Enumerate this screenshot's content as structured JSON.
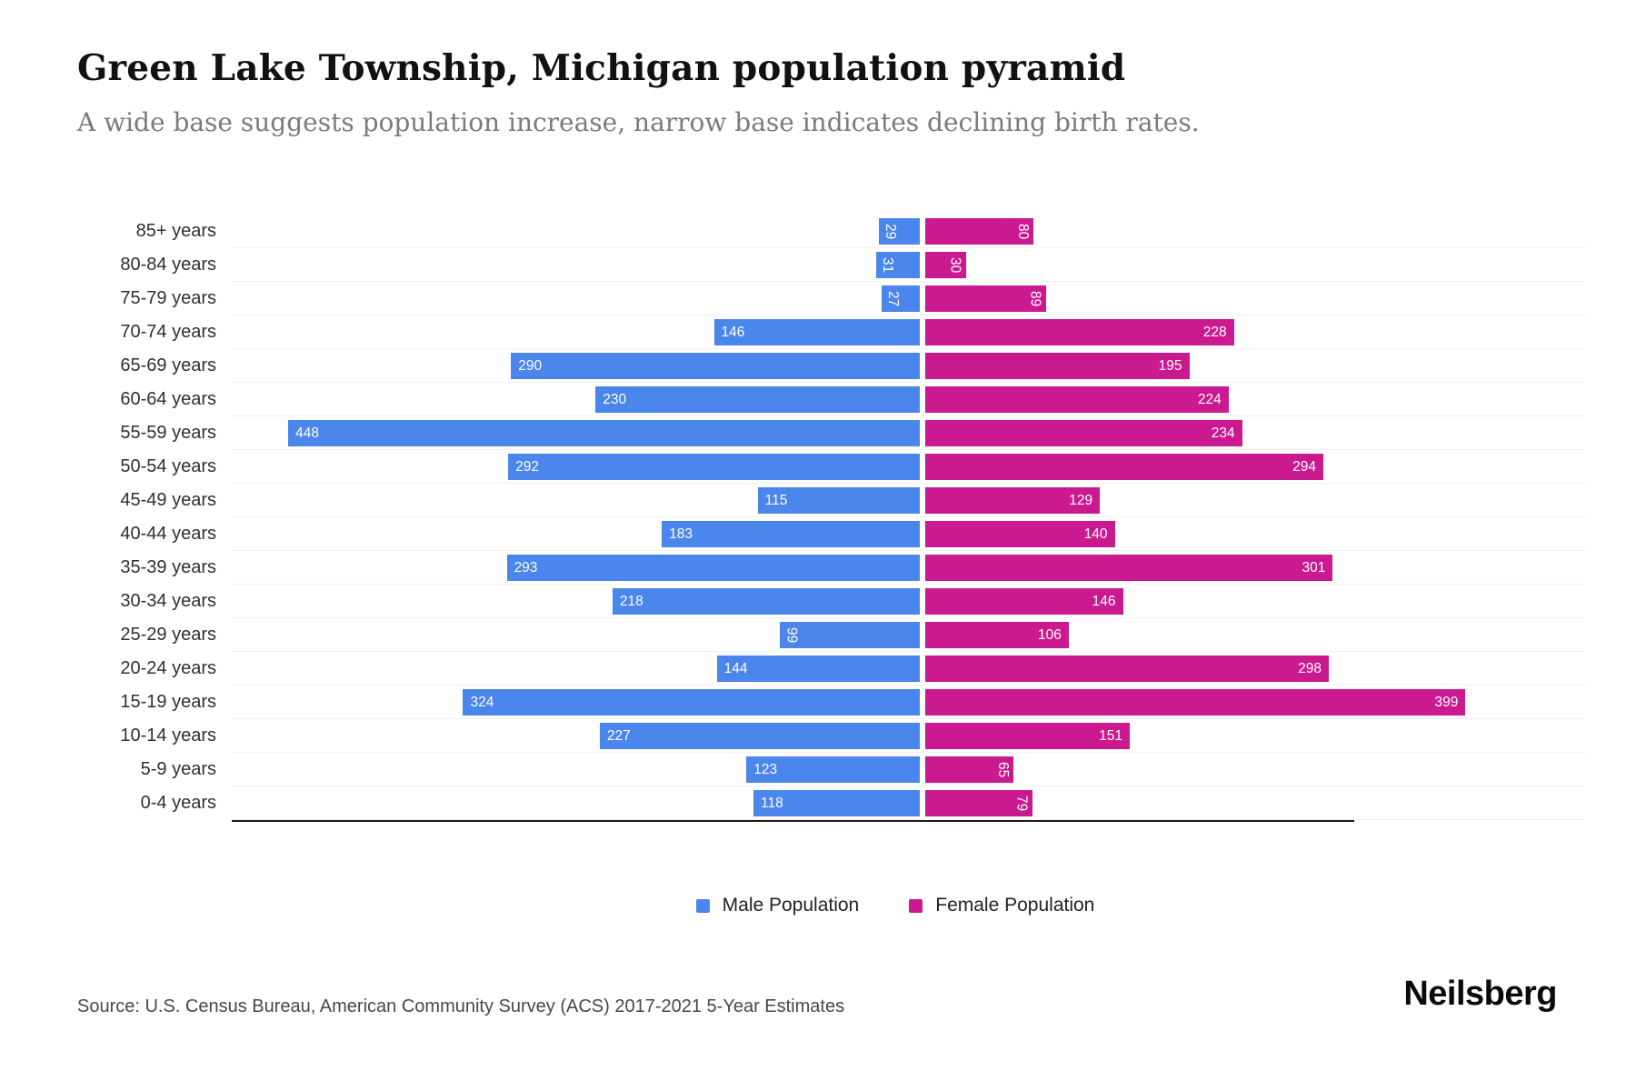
{
  "title": "Green Lake Township, Michigan population pyramid",
  "subtitle": "A wide base suggests population increase, narrow base indicates declining birth rates.",
  "legend": {
    "male_label": "Male Population",
    "female_label": "Female Population"
  },
  "source": "Source: U.S. Census Bureau, American Community Survey (ACS) 2017-2021 5-Year Estimates",
  "brand": "Neilsberg",
  "colors": {
    "male": "#4a86ec",
    "female": "#cb1a90"
  },
  "chart_data": {
    "type": "bar",
    "variant": "population-pyramid",
    "title": "Green Lake Township, Michigan population pyramid",
    "categories": [
      "85+ years",
      "80-84 years",
      "75-79 years",
      "70-74 years",
      "65-69 years",
      "60-64 years",
      "55-59 years",
      "50-54 years",
      "45-49 years",
      "40-44 years",
      "35-39 years",
      "30-34 years",
      "25-29 years",
      "20-24 years",
      "15-19 years",
      "10-14 years",
      "5-9 years",
      "0-4 years"
    ],
    "series": [
      {
        "name": "Male Population",
        "side": "left",
        "color": "#4a86ec",
        "values": [
          29,
          31,
          27,
          146,
          290,
          230,
          448,
          292,
          115,
          183,
          293,
          218,
          99,
          144,
          324,
          227,
          123,
          118
        ]
      },
      {
        "name": "Female Population",
        "side": "right",
        "color": "#cb1a90",
        "values": [
          80,
          30,
          89,
          228,
          195,
          224,
          234,
          294,
          129,
          140,
          301,
          146,
          106,
          298,
          399,
          151,
          65,
          79
        ]
      }
    ],
    "x_max_per_side": 490,
    "value_labels": "inside-outer-end, rotated 90deg when value < 100",
    "grid": "faint horizontal lines per row",
    "legend_position": "bottom-center"
  }
}
